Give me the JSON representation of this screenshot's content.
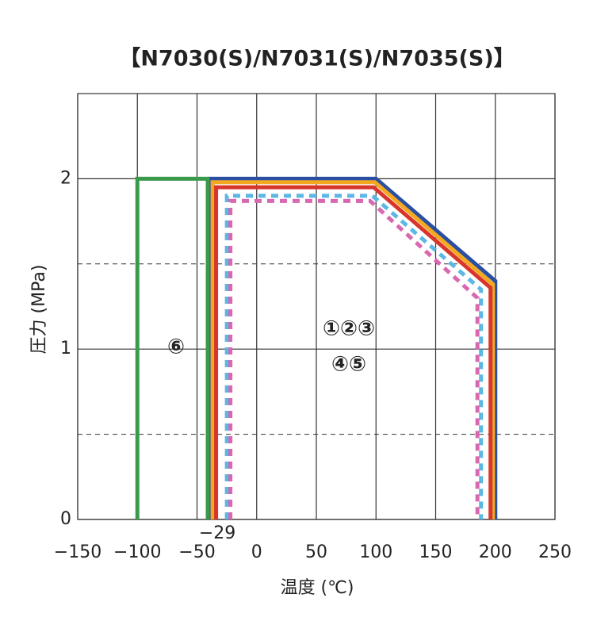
{
  "chart_data": {
    "type": "line",
    "title": "【N7030(S)/N7031(S)/N7035(S)】",
    "xlabel": "温度 (℃)",
    "ylabel": "圧力 (MPa)",
    "xlim": [
      -150,
      250
    ],
    "ylim": [
      0,
      2.5
    ],
    "xticks": [
      {
        "value": -150,
        "label": "−150"
      },
      {
        "value": -100,
        "label": "−100"
      },
      {
        "value": -50,
        "label": "−50"
      },
      0,
      50,
      100,
      150,
      200,
      250
    ],
    "yticks": [
      0,
      1,
      2
    ],
    "dashed_grid": [
      0.5,
      1.5
    ],
    "x_marker": {
      "value": -29,
      "label": "−29"
    },
    "annotations": [
      "①②③",
      "④⑤",
      "⑥"
    ],
    "series": [
      {
        "color": "#2a4ea1",
        "dashed": false,
        "x": [
          -39,
          -39,
          100,
          200,
          200
        ],
        "values": [
          0,
          2,
          2,
          1.4,
          0
        ]
      },
      {
        "color": "#f3a81f",
        "dashed": false,
        "x": [
          -37,
          -37,
          99,
          198,
          198
        ],
        "values": [
          0,
          1.98,
          1.98,
          1.38,
          0
        ]
      },
      {
        "color": "#d8352b",
        "dashed": false,
        "x": [
          -34,
          -34,
          98,
          196,
          196
        ],
        "values": [
          0,
          1.95,
          1.95,
          1.36,
          0
        ]
      },
      {
        "color": "#5cb7e4",
        "dashed": true,
        "x": [
          -25,
          -25,
          97,
          188,
          188
        ],
        "values": [
          0,
          1.9,
          1.9,
          1.35,
          0
        ]
      },
      {
        "color": "#d868b0",
        "dashed": true,
        "x": [
          -22,
          -22,
          95,
          185,
          185
        ],
        "values": [
          0,
          1.87,
          1.87,
          1.3,
          0
        ]
      },
      {
        "color": "#3a9a4b",
        "dashed": false,
        "x": [
          -100,
          -100,
          -41,
          -41
        ],
        "values": [
          0,
          2,
          2,
          0
        ]
      }
    ]
  }
}
